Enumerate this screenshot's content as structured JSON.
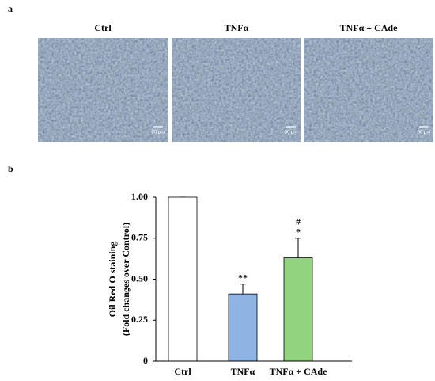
{
  "figure": {
    "panel_a_label": "a",
    "panel_b_label": "b",
    "images": [
      {
        "title": "Ctrl",
        "scale_bar": "30 μm"
      },
      {
        "title": "TNFα",
        "scale_bar": "30 μm"
      },
      {
        "title": "TNFα + CAde",
        "scale_bar": "30 μm"
      }
    ]
  },
  "chart_data": {
    "type": "bar",
    "y_label": [
      "Oil Red O staining",
      "(Fold changes over Control)"
    ],
    "categories": [
      "Ctrl",
      "TNFα",
      "TNFα + CAde"
    ],
    "values": [
      1.0,
      0.41,
      0.63
    ],
    "errors": [
      0,
      0.06,
      0.12
    ],
    "colors": [
      "#ffffff",
      "#8db4e2",
      "#92d37f"
    ],
    "annotations": [
      [],
      [
        "**"
      ],
      [
        "#",
        "*"
      ]
    ],
    "ylim": [
      0,
      1
    ],
    "yticks": [
      0,
      {
        "value": 0.25,
        "label": "0.25"
      },
      {
        "value": 0.5,
        "label": "0.50"
      },
      {
        "value": 0.75,
        "label": "0.75"
      },
      {
        "value": 1,
        "label": "1.00"
      }
    ]
  }
}
